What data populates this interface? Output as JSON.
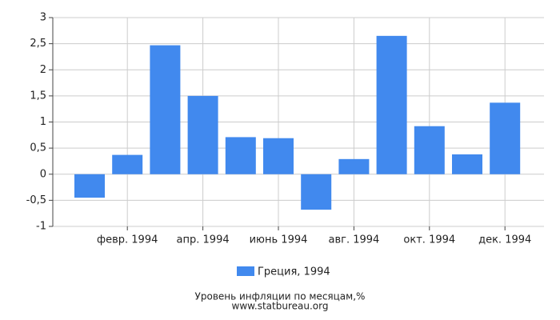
{
  "chart_data": {
    "type": "bar",
    "title": "Уровень инфляции по месяцам,%",
    "source": "www.statbureau.org",
    "categories": [
      null,
      "февр. 1994",
      null,
      "апр. 1994",
      null,
      "июнь 1994",
      null,
      "авг. 1994",
      null,
      "окт. 1994",
      null,
      "дек. 1994"
    ],
    "series": [
      {
        "name": "Греция, 1994",
        "color": "#4189ee",
        "values": [
          -0.45,
          0.37,
          2.47,
          1.5,
          0.71,
          0.69,
          -0.68,
          0.29,
          2.65,
          0.92,
          0.38,
          1.37
        ]
      }
    ],
    "ylim": [
      -1,
      3
    ],
    "yticks": [
      {
        "value": -1,
        "label": "-1"
      },
      {
        "value": -0.5,
        "label": "-0,5"
      },
      0,
      {
        "value": 0.5,
        "label": "0,5"
      },
      1,
      {
        "value": 1.5,
        "label": "1,5"
      },
      2,
      {
        "value": 2.5,
        "label": "2,5"
      },
      3
    ],
    "grid": true
  }
}
